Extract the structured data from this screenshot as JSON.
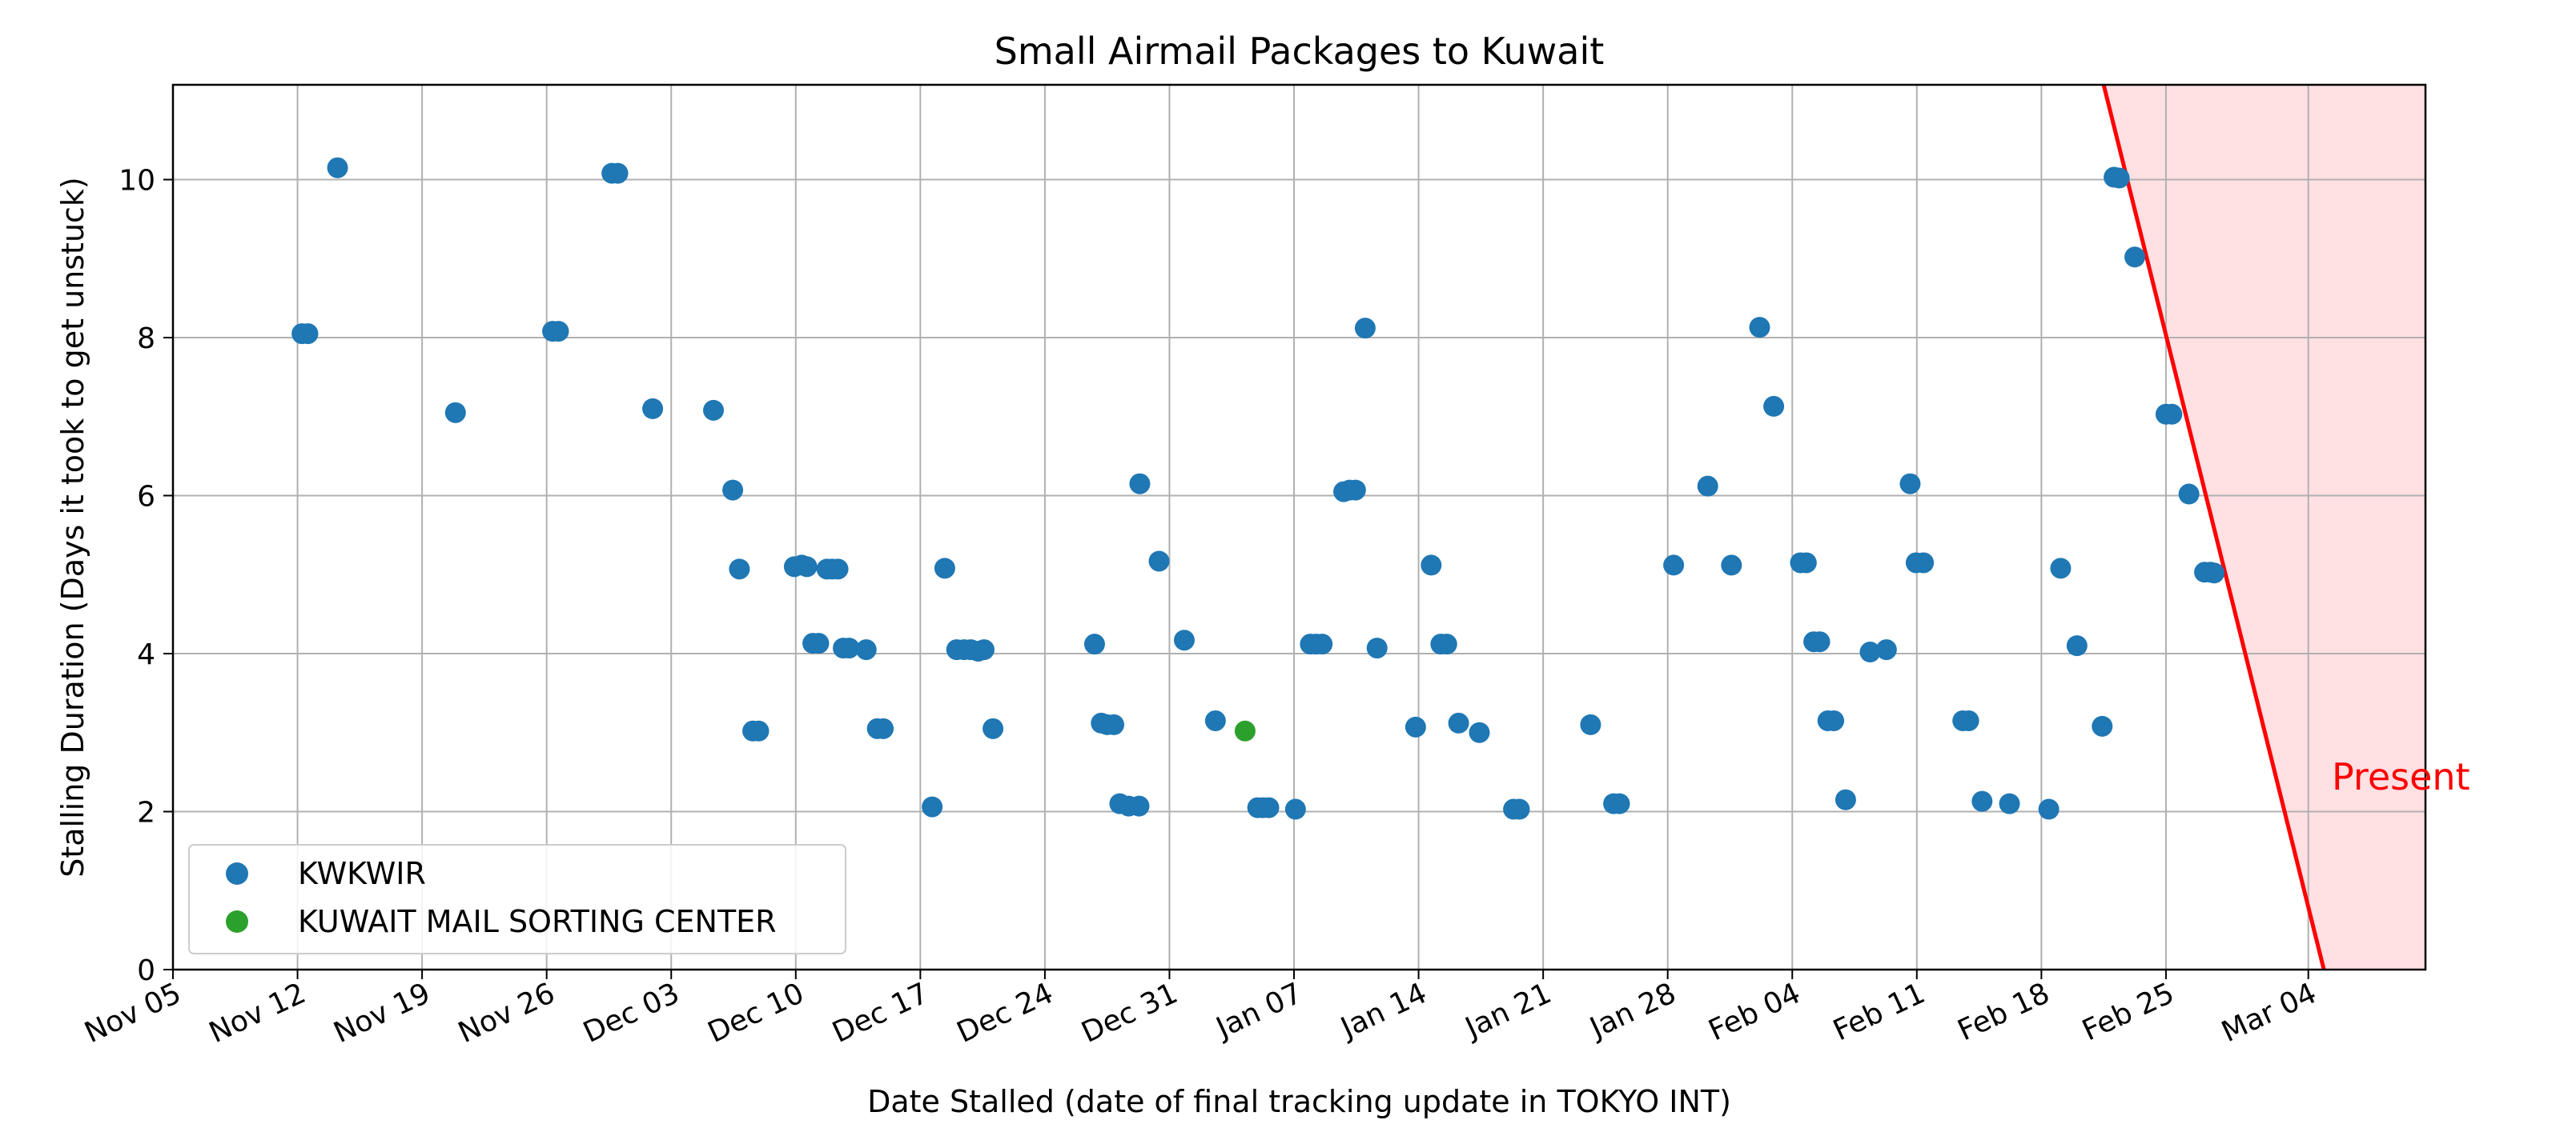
{
  "chart_data": {
    "type": "scatter",
    "title": "Small Airmail Packages to Kuwait",
    "xlabel": "Date Stalled (date of final tracking update in TOKYO INT)",
    "ylabel": "Stalling Duration (Days it took to get unstuck)",
    "x_type": "date",
    "xlim": [
      "2023-11-05",
      "2024-03-10T14:00"
    ],
    "ylim": [
      0,
      11.2
    ],
    "x_ticks": [
      {
        "date": "2023-11-05",
        "label": "Nov 05"
      },
      {
        "date": "2023-11-12",
        "label": "Nov 12"
      },
      {
        "date": "2023-11-19",
        "label": "Nov 19"
      },
      {
        "date": "2023-11-26",
        "label": "Nov 26"
      },
      {
        "date": "2023-12-03",
        "label": "Dec 03"
      },
      {
        "date": "2023-12-10",
        "label": "Dec 10"
      },
      {
        "date": "2023-12-17",
        "label": "Dec 17"
      },
      {
        "date": "2023-12-24",
        "label": "Dec 24"
      },
      {
        "date": "2023-12-31",
        "label": "Dec 31"
      },
      {
        "date": "2024-01-07",
        "label": "Jan 07"
      },
      {
        "date": "2024-01-14",
        "label": "Jan 14"
      },
      {
        "date": "2024-01-21",
        "label": "Jan 21"
      },
      {
        "date": "2024-01-28",
        "label": "Jan 28"
      },
      {
        "date": "2024-02-04",
        "label": "Feb 04"
      },
      {
        "date": "2024-02-11",
        "label": "Feb 11"
      },
      {
        "date": "2024-02-18",
        "label": "Feb 18"
      },
      {
        "date": "2024-02-25",
        "label": "Feb 25"
      },
      {
        "date": "2024-03-04",
        "label": "Mar 04"
      }
    ],
    "y_ticks": [
      0,
      2,
      4,
      6,
      8,
      10
    ],
    "grid": true,
    "legend_position": "bottom-left",
    "series": [
      {
        "name": "KWKWIR",
        "color": "#1f77b4",
        "points": [
          {
            "x": "2023-11-12T06:00",
            "y": 8.05
          },
          {
            "x": "2023-11-12T14:00",
            "y": 8.05
          },
          {
            "x": "2023-11-14T06:00",
            "y": 10.15
          },
          {
            "x": "2023-11-20T21:00",
            "y": 7.05
          },
          {
            "x": "2023-11-26T08:00",
            "y": 8.08
          },
          {
            "x": "2023-11-26T16:00",
            "y": 8.08
          },
          {
            "x": "2023-11-29T16:00",
            "y": 10.08
          },
          {
            "x": "2023-11-30T00:00",
            "y": 10.08
          },
          {
            "x": "2023-12-01T23:00",
            "y": 7.1
          },
          {
            "x": "2023-12-05T09:00",
            "y": 7.08
          },
          {
            "x": "2023-12-06T11:00",
            "y": 6.07
          },
          {
            "x": "2023-12-06T20:00",
            "y": 5.07
          },
          {
            "x": "2023-12-07T14:00",
            "y": 3.02
          },
          {
            "x": "2023-12-07T22:00",
            "y": 3.02
          },
          {
            "x": "2023-12-09T22:00",
            "y": 5.1
          },
          {
            "x": "2023-12-10T08:00",
            "y": 5.12
          },
          {
            "x": "2023-12-10T15:00",
            "y": 5.1
          },
          {
            "x": "2023-12-10T23:00",
            "y": 4.13
          },
          {
            "x": "2023-12-11T07:00",
            "y": 4.13
          },
          {
            "x": "2023-12-11T18:00",
            "y": 5.07
          },
          {
            "x": "2023-12-12T01:00",
            "y": 5.07
          },
          {
            "x": "2023-12-12T09:00",
            "y": 5.07
          },
          {
            "x": "2023-12-12T16:00",
            "y": 4.07
          },
          {
            "x": "2023-12-13T00:00",
            "y": 4.07
          },
          {
            "x": "2023-12-13T23:00",
            "y": 4.05
          },
          {
            "x": "2023-12-14T14:00",
            "y": 3.05
          },
          {
            "x": "2023-12-14T22:00",
            "y": 3.05
          },
          {
            "x": "2023-12-17T16:00",
            "y": 2.06
          },
          {
            "x": "2023-12-18T09:00",
            "y": 5.08
          },
          {
            "x": "2023-12-19T01:00",
            "y": 4.05
          },
          {
            "x": "2023-12-19T11:00",
            "y": 4.05
          },
          {
            "x": "2023-12-19T20:00",
            "y": 4.05
          },
          {
            "x": "2023-12-20T06:00",
            "y": 4.03
          },
          {
            "x": "2023-12-20T14:00",
            "y": 4.05
          },
          {
            "x": "2023-12-21T02:00",
            "y": 3.05
          },
          {
            "x": "2023-12-26T19:00",
            "y": 4.12
          },
          {
            "x": "2023-12-27T04:00",
            "y": 3.12
          },
          {
            "x": "2023-12-27T12:00",
            "y": 3.1
          },
          {
            "x": "2023-12-27T21:00",
            "y": 3.1
          },
          {
            "x": "2023-12-28T05:00",
            "y": 2.1
          },
          {
            "x": "2023-12-28T17:00",
            "y": 2.07
          },
          {
            "x": "2023-12-29T07:00",
            "y": 2.07
          },
          {
            "x": "2023-12-29T08:00",
            "y": 6.15
          },
          {
            "x": "2023-12-30T10:00",
            "y": 5.17
          },
          {
            "x": "2023-12-31T20:00",
            "y": 4.17
          },
          {
            "x": "2024-01-02T14:00",
            "y": 3.15
          },
          {
            "x": "2024-01-04T23:00",
            "y": 2.05
          },
          {
            "x": "2024-01-05T06:00",
            "y": 2.05
          },
          {
            "x": "2024-01-05T14:00",
            "y": 2.05
          },
          {
            "x": "2024-01-07T02:00",
            "y": 2.03
          },
          {
            "x": "2024-01-07T22:00",
            "y": 4.12
          },
          {
            "x": "2024-01-08T06:00",
            "y": 4.12
          },
          {
            "x": "2024-01-08T14:00",
            "y": 4.12
          },
          {
            "x": "2024-01-09T19:00",
            "y": 6.05
          },
          {
            "x": "2024-01-10T03:00",
            "y": 6.07
          },
          {
            "x": "2024-01-10T11:00",
            "y": 6.07
          },
          {
            "x": "2024-01-11T00:00",
            "y": 8.12
          },
          {
            "x": "2024-01-11T16:00",
            "y": 4.07
          },
          {
            "x": "2024-01-13T20:00",
            "y": 3.07
          },
          {
            "x": "2024-01-14T17:00",
            "y": 5.12
          },
          {
            "x": "2024-01-15T06:00",
            "y": 4.12
          },
          {
            "x": "2024-01-15T14:00",
            "y": 4.12
          },
          {
            "x": "2024-01-16T06:00",
            "y": 3.12
          },
          {
            "x": "2024-01-17T10:00",
            "y": 3.0
          },
          {
            "x": "2024-01-19T08:00",
            "y": 2.03
          },
          {
            "x": "2024-01-19T16:00",
            "y": 2.03
          },
          {
            "x": "2024-01-23T16:00",
            "y": 3.1
          },
          {
            "x": "2024-01-24T23:00",
            "y": 2.1
          },
          {
            "x": "2024-01-25T07:00",
            "y": 2.1
          },
          {
            "x": "2024-01-28T08:00",
            "y": 5.12
          },
          {
            "x": "2024-01-30T06:00",
            "y": 6.12
          },
          {
            "x": "2024-01-31T14:00",
            "y": 5.12
          },
          {
            "x": "2024-02-02T04:00",
            "y": 8.13
          },
          {
            "x": "2024-02-02T23:00",
            "y": 7.13
          },
          {
            "x": "2024-02-04T11:00",
            "y": 5.15
          },
          {
            "x": "2024-02-04T19:00",
            "y": 5.15
          },
          {
            "x": "2024-02-05T05:00",
            "y": 4.15
          },
          {
            "x": "2024-02-05T13:00",
            "y": 4.15
          },
          {
            "x": "2024-02-06T00:00",
            "y": 3.15
          },
          {
            "x": "2024-02-06T08:00",
            "y": 3.15
          },
          {
            "x": "2024-02-07T00:00",
            "y": 2.15
          },
          {
            "x": "2024-02-08T09:00",
            "y": 4.02
          },
          {
            "x": "2024-02-09T07:00",
            "y": 4.05
          },
          {
            "x": "2024-02-10T15:00",
            "y": 6.15
          },
          {
            "x": "2024-02-10T23:00",
            "y": 5.15
          },
          {
            "x": "2024-02-11T09:00",
            "y": 5.15
          },
          {
            "x": "2024-02-13T14:00",
            "y": 3.15
          },
          {
            "x": "2024-02-13T22:00",
            "y": 3.15
          },
          {
            "x": "2024-02-14T16:00",
            "y": 2.13
          },
          {
            "x": "2024-02-16T05:00",
            "y": 2.1
          },
          {
            "x": "2024-02-18T10:00",
            "y": 2.03
          },
          {
            "x": "2024-02-19T02:00",
            "y": 5.08
          },
          {
            "x": "2024-02-20T00:00",
            "y": 4.1
          },
          {
            "x": "2024-02-21T10:00",
            "y": 3.08
          },
          {
            "x": "2024-02-22T02:00",
            "y": 10.03
          },
          {
            "x": "2024-02-22T09:00",
            "y": 10.02
          },
          {
            "x": "2024-02-23T06:00",
            "y": 9.02
          },
          {
            "x": "2024-02-25T00:00",
            "y": 7.03
          },
          {
            "x": "2024-02-25T08:00",
            "y": 7.03
          },
          {
            "x": "2024-02-26T07:00",
            "y": 6.02
          },
          {
            "x": "2024-02-27T04:00",
            "y": 5.03
          },
          {
            "x": "2024-02-27T12:00",
            "y": 5.03
          },
          {
            "x": "2024-02-27T17:00",
            "y": 5.02
          }
        ]
      },
      {
        "name": "KUWAIT MAIL SORTING CENTER",
        "color": "#2ca02c",
        "points": [
          {
            "x": "2024-01-04T06:00",
            "y": 3.02
          }
        ]
      }
    ],
    "annotations": [
      {
        "text": "Present",
        "color": "#ff0000",
        "line_from": {
          "x": "2024-02-21T12:00",
          "y": 11.2
        },
        "line_to": {
          "x": "2024-03-04T21:00",
          "y": 0
        },
        "shaded_region_color": "#ffe0e3"
      }
    ]
  }
}
